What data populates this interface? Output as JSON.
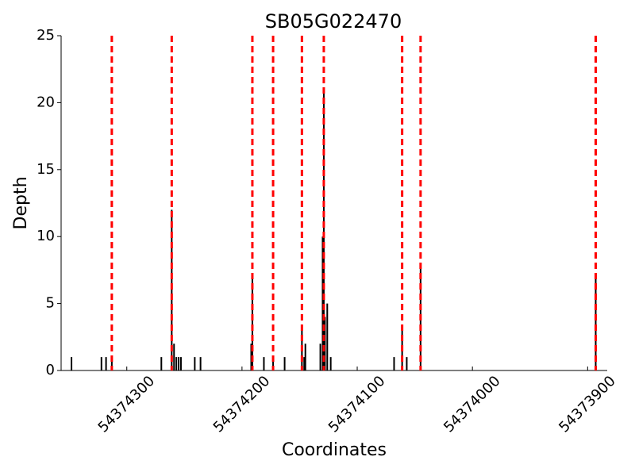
{
  "chart_data": {
    "type": "bar",
    "title": "SB05G022470",
    "x_label": "Coordinates",
    "y_label": "Depth",
    "x": [
      54374348,
      54374322,
      54374318,
      54374313,
      54374270,
      54374261,
      54374259,
      54374257,
      54374255,
      54374253,
      54374241,
      54374236,
      54374192,
      54374191,
      54374181,
      54374173,
      54374163,
      54374148,
      54374146,
      54374145,
      54374132,
      54374130,
      54374129,
      54374128,
      54374126,
      54374123,
      54374068,
      54374061,
      54374057,
      54374045,
      54373893
    ],
    "values": [
      1,
      1,
      1,
      1,
      1,
      12,
      2,
      1,
      1,
      1,
      1,
      1,
      2,
      7,
      1,
      1,
      1,
      3,
      1,
      2,
      2,
      10,
      21,
      4,
      5,
      1,
      1,
      3,
      1,
      8,
      7
    ],
    "color": "#000000",
    "vlines": [
      54374313,
      54374261,
      54374191,
      54374173,
      54374148,
      54374129,
      54374061,
      54374045,
      54373893
    ],
    "vline_color": "#ff0000",
    "xlim": [
      54374357,
      54373883
    ],
    "xticks": [
      54374300,
      54374200,
      54374100,
      54374000,
      54373900
    ],
    "ylim": [
      0,
      25
    ],
    "yticks": [
      0,
      5,
      10,
      15,
      20,
      25
    ]
  }
}
